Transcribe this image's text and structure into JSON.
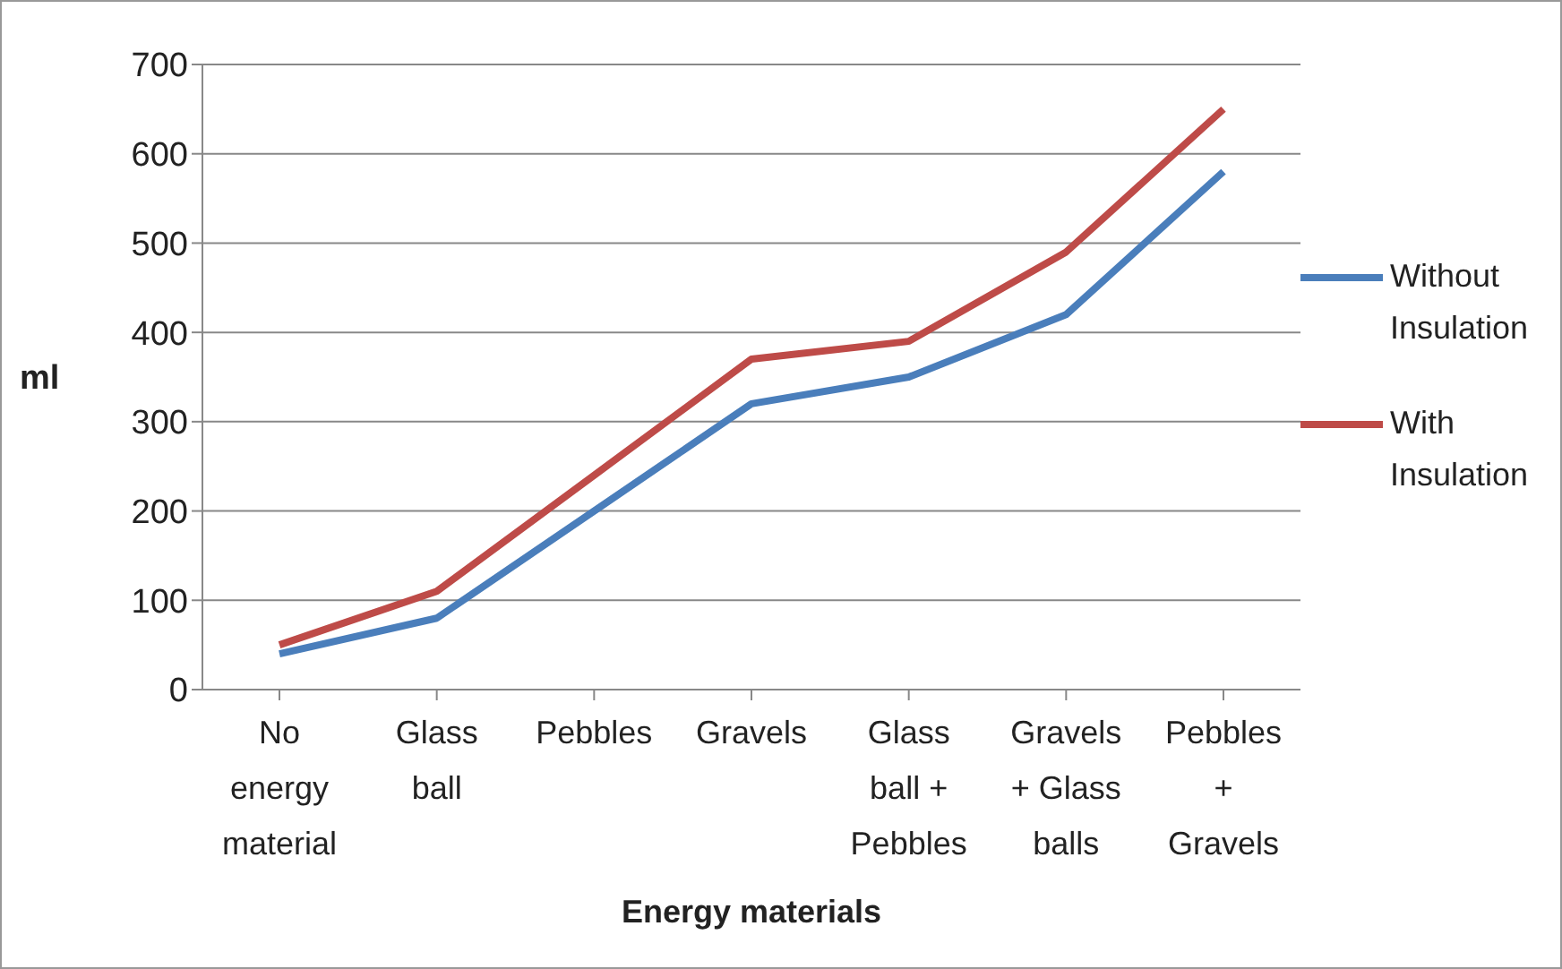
{
  "chart_data": {
    "type": "line",
    "xlabel": "Energy materials",
    "ylabel": "ml",
    "categories": [
      "No energy material",
      "Glass ball",
      "Pebbles",
      "Gravels",
      "Glass ball + Pebbles",
      "Gravels + Glass balls",
      "Pebbles + Gravels"
    ],
    "series": [
      {
        "name": "Without Insulation",
        "color": "#4a7ebb",
        "values": [
          40,
          80,
          200,
          320,
          350,
          420,
          580
        ]
      },
      {
        "name": "With Insulation",
        "color": "#be4b48",
        "values": [
          50,
          110,
          240,
          370,
          390,
          490,
          650
        ]
      }
    ],
    "ylim": [
      0,
      700
    ],
    "yticks": [
      0,
      100,
      200,
      300,
      400,
      500,
      600,
      700
    ],
    "grid": "y",
    "legend": "right",
    "marker": "none",
    "line_style": "solid"
  }
}
